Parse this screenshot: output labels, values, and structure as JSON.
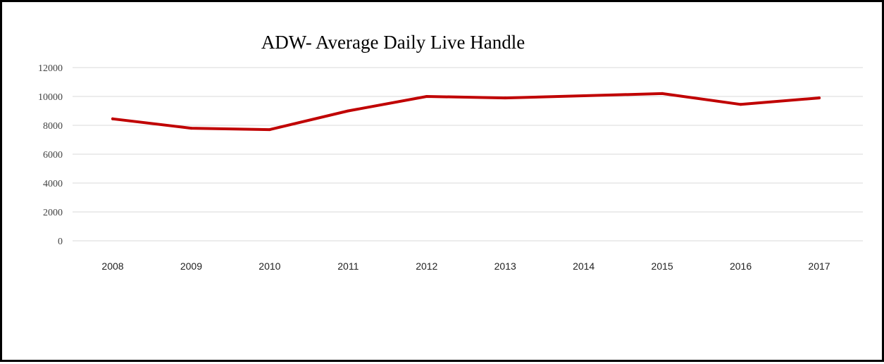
{
  "chart_data": {
    "type": "line",
    "title": "ADW- Average Daily Live Handle",
    "xlabel": "",
    "ylabel": "",
    "categories": [
      "2008",
      "2009",
      "2010",
      "2011",
      "2012",
      "2013",
      "2014",
      "2015",
      "2016",
      "2017"
    ],
    "series": [
      {
        "values": [
          8450,
          7800,
          7700,
          9000,
          10000,
          9900,
          10050,
          10200,
          9450,
          9900
        ]
      }
    ],
    "ylim": [
      0,
      12000
    ],
    "yticks": [
      "0",
      "2000",
      "4000",
      "6000",
      "8000",
      "10000",
      "12000"
    ],
    "grid": true,
    "legend": "none",
    "colors": {
      "line": "#c00000",
      "grid": "#d9d9d9",
      "border": "#000000"
    }
  }
}
